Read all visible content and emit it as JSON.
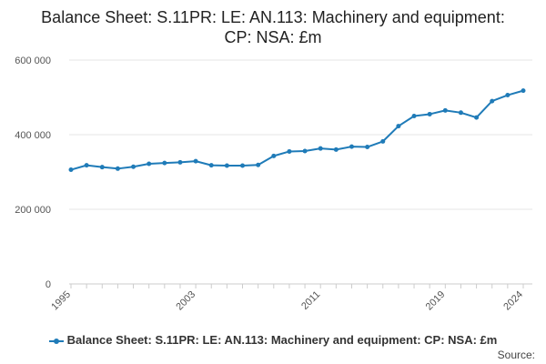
{
  "chart_data": {
    "type": "line",
    "title": "Balance Sheet: S.11PR: LE: AN.113: Machinery and equipment: CP: NSA: £m",
    "x": [
      1995,
      1996,
      1997,
      1998,
      1999,
      2000,
      2001,
      2002,
      2003,
      2004,
      2005,
      2006,
      2007,
      2008,
      2009,
      2010,
      2011,
      2012,
      2013,
      2014,
      2015,
      2016,
      2017,
      2018,
      2019,
      2020,
      2021,
      2022,
      2023,
      2024
    ],
    "series": [
      {
        "name": "Balance Sheet: S.11PR: LE: AN.113: Machinery and equipment: CP: NSA: £m",
        "values": [
          306000,
          318000,
          313000,
          309000,
          314000,
          322000,
          324000,
          326000,
          329000,
          318000,
          317000,
          317000,
          319000,
          343000,
          355000,
          356000,
          363000,
          360000,
          368000,
          367000,
          382000,
          423000,
          450000,
          455000,
          465000,
          459000,
          446000,
          490000,
          506000,
          518000
        ]
      }
    ],
    "x_tick_labels": [
      "1995",
      "2003",
      "2011",
      "2019",
      "2024"
    ],
    "y_tick_labels": [
      "0",
      "200 000",
      "400 000",
      "600 000"
    ],
    "y_ticks": [
      0,
      200000,
      400000,
      600000
    ],
    "ylim": [
      0,
      600000
    ],
    "xlim": [
      1995,
      2024
    ],
    "grid": "horizontal",
    "legend_position": "bottom",
    "color": "#1f7bb8"
  },
  "source_label": "Source:"
}
